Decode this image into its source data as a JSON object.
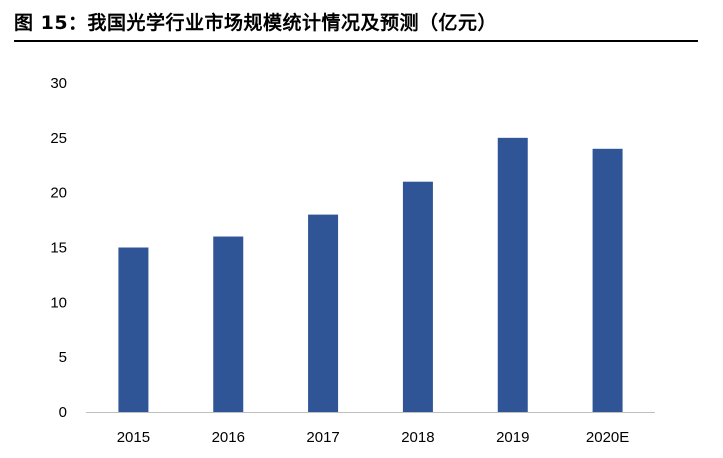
{
  "figure": {
    "title": "图 15：我国光学行业市场规模统计情况及预测（亿元）"
  },
  "chart_data": {
    "type": "bar",
    "categories": [
      "2015",
      "2016",
      "2017",
      "2018",
      "2019",
      "2020E"
    ],
    "values": [
      15,
      16,
      18,
      21,
      25,
      24
    ],
    "ylim": [
      0,
      30
    ],
    "yticks": [
      "0",
      "5",
      "10",
      "15",
      "20",
      "25",
      "30"
    ],
    "bar_color": "#2f5597",
    "grid": false,
    "legend": "none"
  }
}
